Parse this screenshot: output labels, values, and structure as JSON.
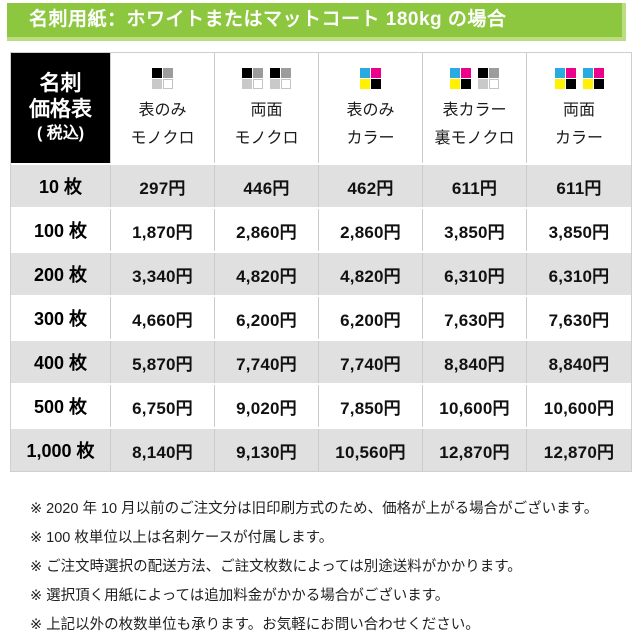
{
  "banner": {
    "title": "名刺用紙：ホワイトまたはマットコート 180kg の場合"
  },
  "colors": {
    "banner_green": "#8dc63f",
    "banner_green_light": "#bcdc82",
    "row_gray": "#e0e0e0",
    "grid_line": "#cccccc",
    "corner_black": "#000000"
  },
  "icon_palettes": {
    "mono": [
      "#000000",
      "#9c9c9c",
      "#c9c9c9",
      "#ffffff"
    ],
    "cmyk": [
      "#29abe2",
      "#ec008c",
      "#fff100",
      "#000000"
    ]
  },
  "table": {
    "corner": {
      "line1": "名刺",
      "line2": "価格表",
      "line3": "( 税込)"
    },
    "columns": [
      {
        "line1": "表のみ",
        "line2": "モノクロ",
        "icons": [
          "mono"
        ]
      },
      {
        "line1": "両面",
        "line2": "モノクロ",
        "icons": [
          "mono",
          "mono"
        ]
      },
      {
        "line1": "表のみ",
        "line2": "カラー",
        "icons": [
          "cmyk"
        ]
      },
      {
        "line1": "表カラー",
        "line2": "裏モノクロ",
        "icons": [
          "cmyk",
          "mono"
        ]
      },
      {
        "line1": "両面",
        "line2": "カラー",
        "icons": [
          "cmyk",
          "cmyk"
        ]
      }
    ],
    "rows": [
      {
        "qty": "10 枚",
        "prices": [
          "297円",
          "446円",
          "462円",
          "611円",
          "611円"
        ]
      },
      {
        "qty": "100 枚",
        "prices": [
          "1,870円",
          "2,860円",
          "2,860円",
          "3,850円",
          "3,850円"
        ]
      },
      {
        "qty": "200 枚",
        "prices": [
          "3,340円",
          "4,820円",
          "4,820円",
          "6,310円",
          "6,310円"
        ]
      },
      {
        "qty": "300 枚",
        "prices": [
          "4,660円",
          "6,200円",
          "6,200円",
          "7,630円",
          "7,630円"
        ]
      },
      {
        "qty": "400 枚",
        "prices": [
          "5,870円",
          "7,740円",
          "7,740円",
          "8,840円",
          "8,840円"
        ]
      },
      {
        "qty": "500 枚",
        "prices": [
          "6,750円",
          "9,020円",
          "7,850円",
          "10,600円",
          "10,600円"
        ]
      },
      {
        "qty": "1,000 枚",
        "prices": [
          "8,140円",
          "9,130円",
          "10,560円",
          "12,870円",
          "12,870円"
        ]
      }
    ]
  },
  "notes": [
    "※ 2020 年 10 月以前のご注文分は旧印刷方式のため、価格が上がる場合がございます。",
    "※ 100 枚単位以上は名刺ケースが付属します。",
    "※ ご注文時選択の配送方法、ご註文枚数によっては別途送料がかかります。",
    "※ 選択頂く用紙によっては追加料金がかかる場合がございます。",
    "※ 上記以外の枚数単位も承ります。お気軽にお問い合わせください。"
  ]
}
